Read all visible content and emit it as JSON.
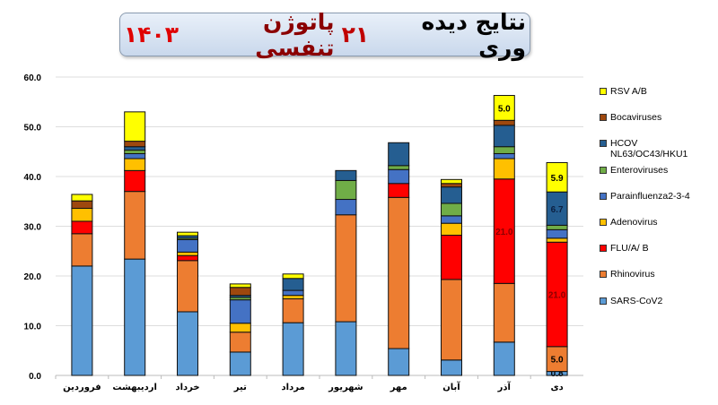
{
  "title": {
    "parts": [
      {
        "text": "نتایج دیده وری",
        "color": "#000000"
      },
      {
        "text": "۲۱",
        "color": "#c00000"
      },
      {
        "text": "پاتوژن تنفسی",
        "color": "#8b0000"
      },
      {
        "text": "۱۴۰۳",
        "color": "#e00000"
      }
    ]
  },
  "chart_data": {
    "type": "bar",
    "stacked": true,
    "ylim": [
      0,
      60
    ],
    "yticks": [
      "0.0",
      "10.0",
      "20.0",
      "30.0",
      "40.0",
      "50.0",
      "60.0"
    ],
    "grid": true,
    "legend_position": "right",
    "categories": [
      "فروردین",
      "اردیبهشت",
      "خرداد",
      "تیر",
      "مرداد",
      "شهریور",
      "مهر",
      "آبان",
      "آذر",
      "دی"
    ],
    "series": [
      {
        "name": "SARS-CoV2",
        "color": "#5b9bd5",
        "values": [
          22.0,
          23.4,
          12.8,
          4.7,
          10.6,
          10.8,
          5.4,
          3.1,
          6.7,
          0.8
        ]
      },
      {
        "name": "Rhinovirus",
        "color": "#ed7d31",
        "values": [
          6.5,
          13.6,
          10.3,
          4.0,
          4.8,
          21.5,
          30.4,
          16.2,
          11.8,
          5.0
        ]
      },
      {
        "name": "FLU/A/ B",
        "color": "#ff0000",
        "values": [
          2.5,
          4.2,
          1.0,
          0,
          0,
          0,
          2.8,
          8.9,
          21.0,
          21.0
        ]
      },
      {
        "name": "Adenovirus",
        "color": "#ffc000",
        "values": [
          2.6,
          2.4,
          0.7,
          1.8,
          0.7,
          0,
          0,
          2.4,
          4.1,
          0.8
        ]
      },
      {
        "name": "Parainfluenza2-3-4",
        "color": "#4472c4",
        "values": [
          0,
          1.0,
          2.5,
          4.7,
          1.0,
          3.1,
          2.8,
          1.5,
          1.0,
          1.7
        ]
      },
      {
        "name": "Enteroviruses",
        "color": "#70ad47",
        "values": [
          0,
          0.7,
          0.3,
          0.5,
          0,
          3.8,
          0.8,
          2.5,
          1.4,
          0.9
        ]
      },
      {
        "name": "HCOV NL63/OC43/HKU1",
        "color": "#255e91",
        "values": [
          0,
          0.7,
          0.5,
          0.4,
          2.4,
          2.0,
          4.6,
          3.3,
          4.3,
          6.7
        ]
      },
      {
        "name": "Bocaviruses",
        "color": "#9e480e",
        "values": [
          1.5,
          1.1,
          0,
          1.6,
          0,
          0,
          0,
          0.7,
          1.0,
          0
        ]
      },
      {
        "name": "RSV A/B",
        "color": "#ffff00",
        "values": [
          1.3,
          5.9,
          0.7,
          0.7,
          0.9,
          0,
          0,
          0.8,
          5.0,
          5.9
        ]
      }
    ],
    "data_labels": [
      {
        "category": "آذر",
        "series": "FLU/A/ B",
        "text": "21.0"
      },
      {
        "category": "آذر",
        "series": "RSV A/B",
        "text": "5.0"
      },
      {
        "category": "دی",
        "series": "SARS-CoV2",
        "text": "0.8"
      },
      {
        "category": "دی",
        "series": "Rhinovirus",
        "text": "5.0"
      },
      {
        "category": "دی",
        "series": "FLU/A/ B",
        "text": "21.0"
      },
      {
        "category": "دی",
        "series": "HCOV NL63/OC43/HKU1",
        "text": "6.7"
      },
      {
        "category": "دی",
        "series": "RSV A/B",
        "text": "5.9"
      }
    ],
    "legend": [
      "RSV A/B",
      "Bocaviruses",
      "HCOV NL63/OC43/HKU1",
      "Enteroviruses",
      "Parainfluenza2-3-4",
      "Adenovirus",
      "FLU/A/ B",
      "Rhinovirus",
      "SARS-CoV2"
    ]
  }
}
